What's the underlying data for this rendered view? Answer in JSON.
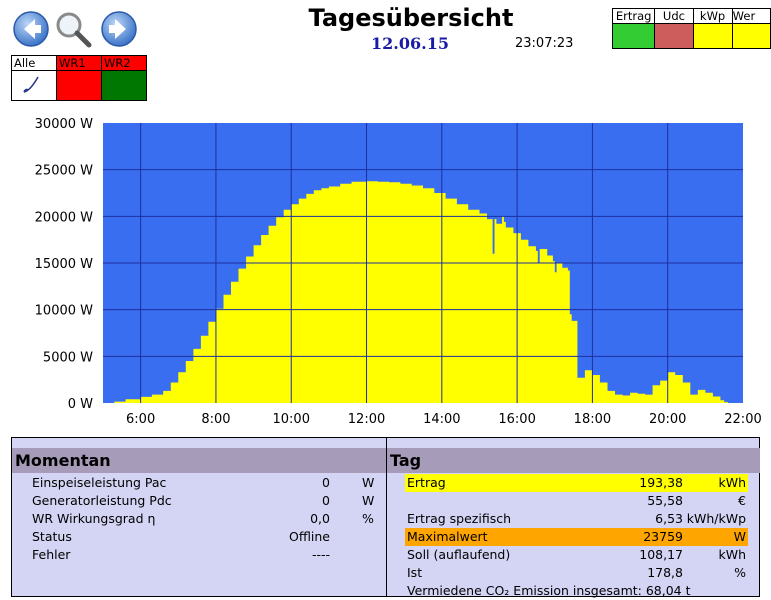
{
  "header": {
    "title": "Tagesübersicht",
    "date": "12.06.15",
    "time": "23:07:23"
  },
  "legend": {
    "items": [
      {
        "label": "Ertrag",
        "color": "#33cc33"
      },
      {
        "label": "Udc",
        "color": "#cd5c5c"
      },
      {
        "label": "kWp",
        "color": "#ffff00"
      },
      {
        "label": "Wer",
        "color": "#ffff00"
      }
    ]
  },
  "inverters": {
    "items": [
      {
        "label": "Alle",
        "color": "#ffffff"
      },
      {
        "label": "WR1",
        "color": "#ff0000"
      },
      {
        "label": "WR2",
        "color": "#007700"
      }
    ]
  },
  "chart_data": {
    "type": "area",
    "title": "",
    "xlabel": "",
    "ylabel": "",
    "xlim": [
      5.0,
      22.0
    ],
    "ylim": [
      0,
      30000
    ],
    "x_ticks": [
      "6:00",
      "8:00",
      "10:00",
      "12:00",
      "14:00",
      "16:00",
      "18:00",
      "20:00",
      "22:00"
    ],
    "y_ticks": [
      "30000 W",
      "25000 W",
      "20000 W",
      "15000 W",
      "10000 W",
      "5000 W",
      "0 W"
    ],
    "grid": true,
    "plot_color": "#3a6ef0",
    "fill_color": "#ffff00",
    "series": [
      {
        "x": [
          5.3,
          5.6,
          6.0,
          6.3,
          6.6,
          6.8,
          7.0,
          7.2,
          7.4,
          7.6,
          7.8,
          8.0,
          8.2,
          8.4,
          8.6,
          8.8,
          9.0,
          9.2,
          9.4,
          9.6,
          9.8,
          10.0,
          10.2,
          10.4,
          10.6,
          10.8,
          11.0,
          11.3,
          11.6,
          12.0,
          12.3,
          12.6,
          12.9,
          13.2,
          13.5,
          13.8,
          14.1,
          14.4,
          14.7,
          15.0,
          15.2,
          15.35,
          15.4,
          15.45,
          15.6,
          15.65,
          15.7,
          15.9,
          16.1,
          16.3,
          16.5,
          16.55,
          16.6,
          16.8,
          16.95,
          17.0,
          17.05,
          17.2,
          17.35,
          17.4,
          17.45,
          17.6,
          17.8,
          18.0,
          18.2,
          18.4,
          18.6,
          18.8,
          19.0,
          19.2,
          19.4,
          19.6,
          19.8,
          20.0,
          20.2,
          20.4,
          20.6,
          20.8,
          21.0,
          21.2,
          21.4,
          21.5
        ],
        "values": [
          150,
          400,
          650,
          900,
          1300,
          2200,
          3300,
          4500,
          5800,
          7200,
          8700,
          10100,
          11600,
          13000,
          14400,
          15700,
          16900,
          18000,
          19000,
          19900,
          20700,
          21300,
          21900,
          22400,
          22800,
          23000,
          23200,
          23500,
          23700,
          23750,
          23700,
          23650,
          23500,
          23300,
          23000,
          22500,
          21900,
          21300,
          20700,
          20300,
          19700,
          16000,
          19700,
          19200,
          20000,
          19400,
          18800,
          18200,
          17500,
          16800,
          16300,
          15000,
          16500,
          15800,
          15200,
          14000,
          15000,
          14500,
          14200,
          9500,
          8800,
          2700,
          3500,
          3000,
          2200,
          1300,
          900,
          800,
          1100,
          1000,
          900,
          1900,
          2400,
          3300,
          3000,
          2200,
          900,
          1400,
          1100,
          700,
          300,
          100
        ]
      }
    ]
  },
  "momentan": {
    "title": "Momentan",
    "rows": [
      {
        "label": "Einspeiseleistung Pac",
        "value": "0",
        "unit": "W"
      },
      {
        "label": "Generatorleistung Pdc",
        "value": "0",
        "unit": "W"
      },
      {
        "label": "WR Wirkungsgrad η",
        "value": "0,0",
        "unit": "%"
      },
      {
        "label": "Status",
        "value": "Offline",
        "unit": ""
      },
      {
        "label": "Fehler",
        "value": "----",
        "unit": ""
      }
    ]
  },
  "tag": {
    "title": "Tag",
    "rows": [
      {
        "label": "Ertrag",
        "value": "193,38",
        "unit": "kWh",
        "highlight": "#ffff00"
      },
      {
        "label": "",
        "value": "55,58",
        "unit": "€",
        "highlight": ""
      },
      {
        "label": "Ertrag spezifisch",
        "value": "6,53",
        "unit": "kWh/kWp",
        "highlight": ""
      },
      {
        "label": "Maximalwert",
        "value": "23759",
        "unit": "W",
        "highlight": "#ffa500"
      },
      {
        "label": "Soll (auflaufend)",
        "value": "108,17",
        "unit": "kWh",
        "highlight": ""
      },
      {
        "label": "Ist",
        "value": "178,8",
        "unit": "%",
        "highlight": ""
      },
      {
        "label": "Vermiedene CO₂ Emission insgesamt: 68,04 t",
        "value": "",
        "unit": "",
        "highlight": ""
      }
    ]
  }
}
